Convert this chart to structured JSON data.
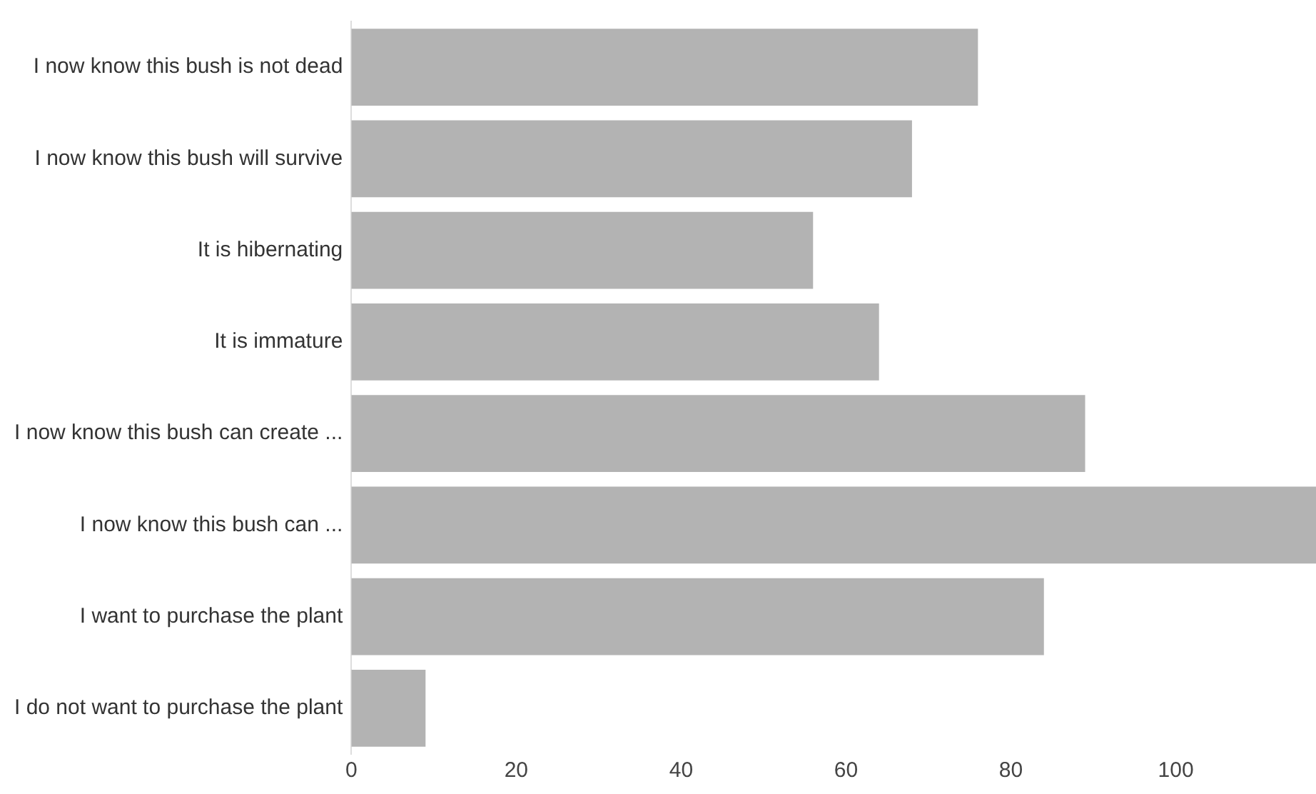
{
  "chart_data": {
    "type": "bar",
    "orientation": "horizontal",
    "categories": [
      "I now know this bush is not dead",
      "I now know this bush will survive",
      "It is hibernating",
      "It is immature",
      "I now know this bush can create ...",
      "I now know this bush can ...",
      "I want to purchase the plant",
      "I do not want to purchase the plant"
    ],
    "values": [
      76,
      68,
      56,
      64,
      89,
      117,
      84,
      9
    ],
    "color": "#b3b3b3",
    "xlim": [
      0,
      117
    ],
    "xticks": [
      0,
      20,
      40,
      60,
      80,
      100
    ],
    "grid": false,
    "legend": false
  }
}
